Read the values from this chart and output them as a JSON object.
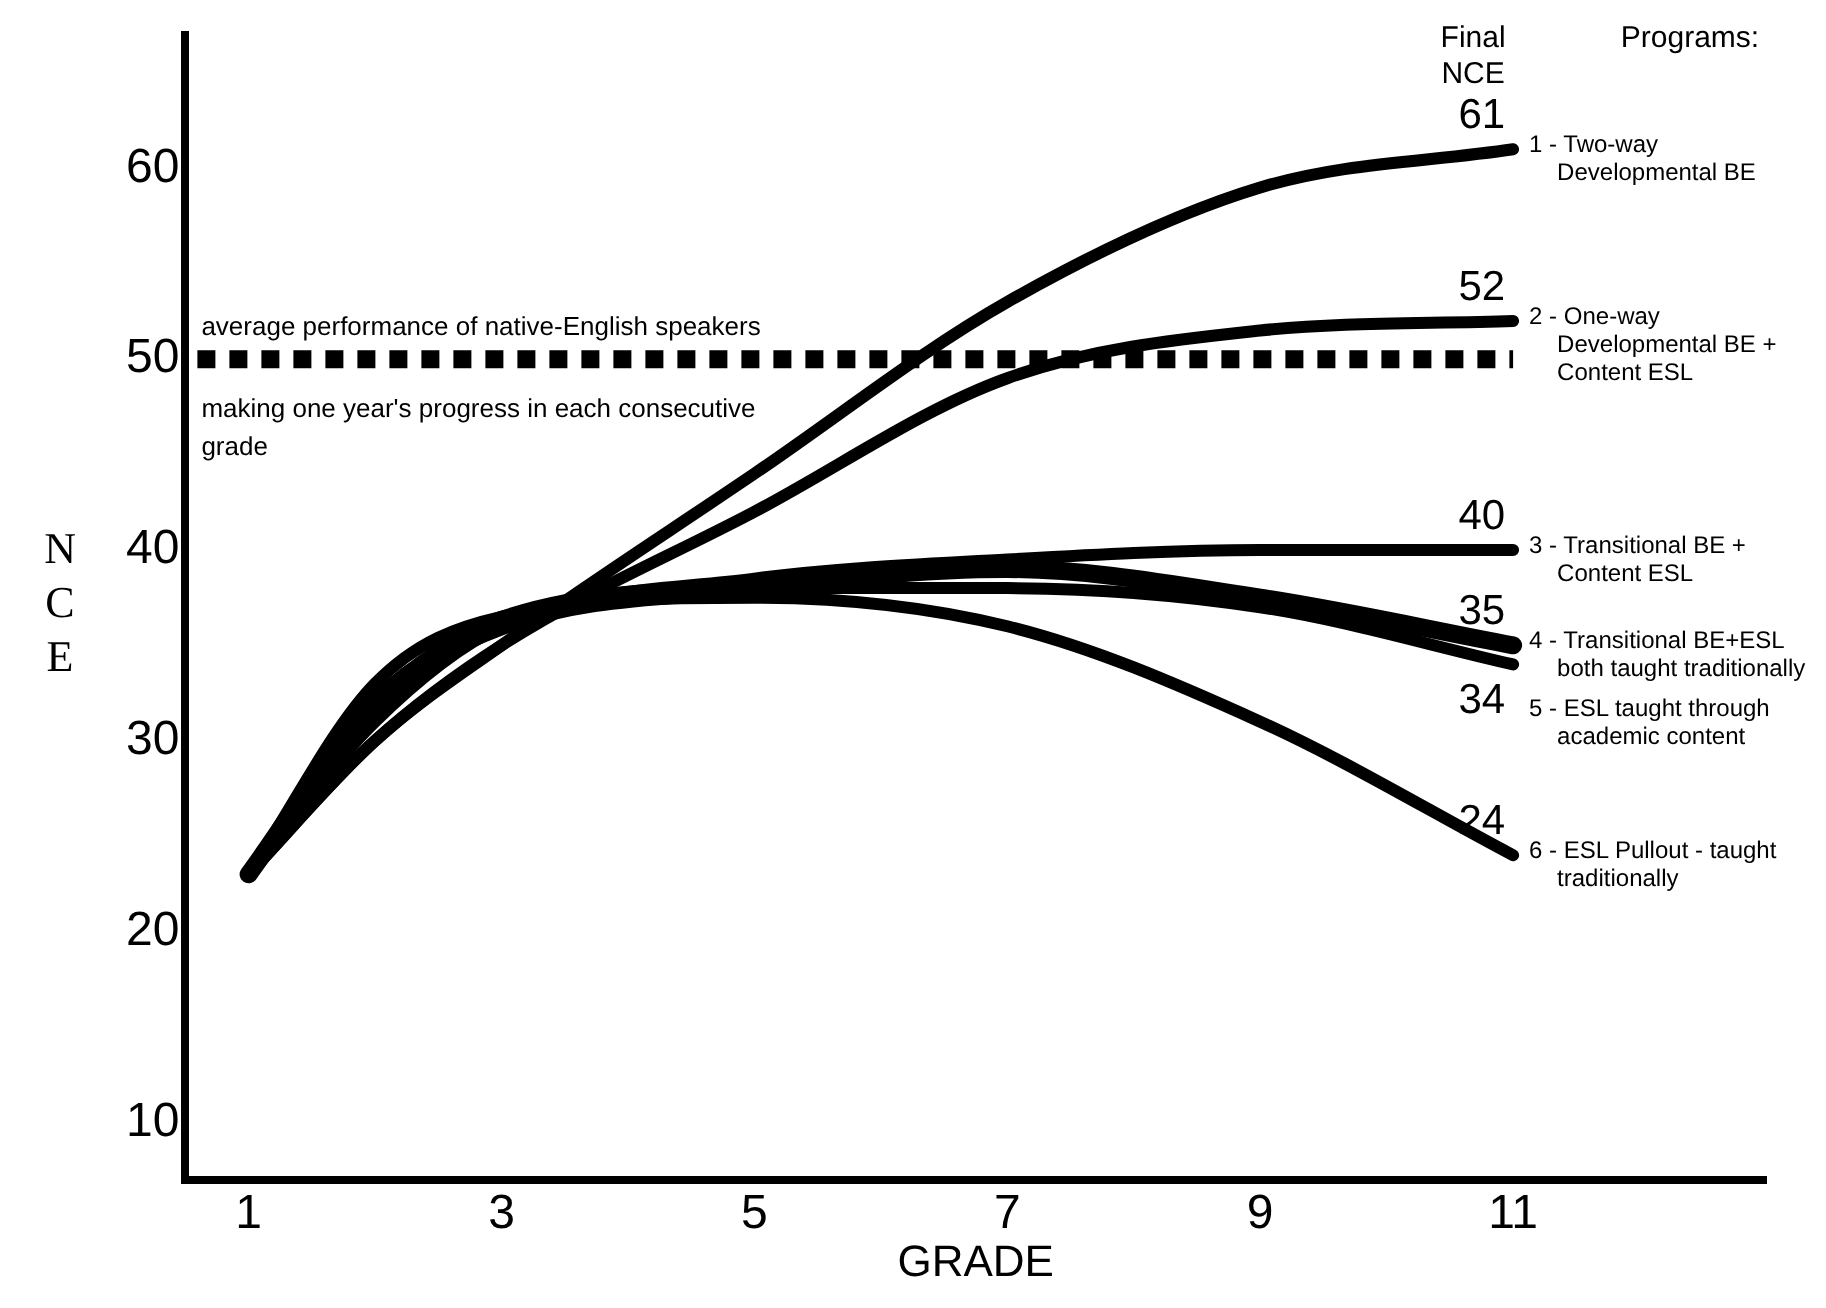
{
  "chart_data": {
    "type": "line",
    "xlabel": "GRADE",
    "ylabel": "NCE",
    "x": [
      1,
      2,
      3,
      5,
      7,
      9,
      11
    ],
    "xlim": [
      0.5,
      13
    ],
    "xticks": [
      1,
      3,
      5,
      7,
      9,
      11
    ],
    "ylim": [
      7,
      67
    ],
    "yticks": [
      10,
      20,
      30,
      40,
      50,
      60
    ],
    "grid": false,
    "marker": "none",
    "line_style": "solid",
    "series": [
      {
        "name": "1 - Two-way Developmental BE",
        "color": "#000000",
        "values": [
          23,
          30,
          35,
          44,
          53,
          59,
          61
        ],
        "value_labels": [
          null,
          null,
          null,
          null,
          null,
          null,
          "61"
        ]
      },
      {
        "name": "2 - One-way Developmental BE + Content ESL",
        "color": "#000000",
        "values": [
          23,
          30,
          35,
          42,
          49,
          51.5,
          52
        ],
        "value_labels": [
          null,
          null,
          null,
          null,
          null,
          null,
          "52"
        ]
      },
      {
        "name": "3 - Transitional BE + Content ESL",
        "color": "#000000",
        "values": [
          23,
          31,
          36,
          38.5,
          39.5,
          40,
          40
        ],
        "value_labels": [
          null,
          null,
          null,
          null,
          null,
          null,
          "40"
        ]
      },
      {
        "name": "4 - Transitional BE+ESL both taught traditionally",
        "color": "#000000",
        "values": [
          23,
          32,
          36,
          38,
          39,
          37.5,
          35
        ],
        "value_labels": [
          null,
          null,
          null,
          null,
          null,
          null,
          "35"
        ]
      },
      {
        "name": "5 - ESL taught through academic content",
        "color": "#000000",
        "values": [
          23,
          32,
          36.5,
          38,
          38,
          37,
          34
        ],
        "value_labels": [
          null,
          null,
          null,
          null,
          null,
          null,
          "34"
        ]
      },
      {
        "name": "6 - ESL Pullout - taught traditionally",
        "color": "#000000",
        "values": [
          23,
          33,
          36.5,
          37.5,
          36,
          31,
          24
        ],
        "value_labels": [
          null,
          null,
          null,
          null,
          null,
          null,
          "24"
        ]
      }
    ],
    "ref_lines": [
      {
        "axis": "y",
        "value": 50,
        "label": "average performance of native-English speakers making one year's progress in each consecutive grade",
        "color": "#000000",
        "line_style": "dotted"
      }
    ],
    "annotations": [
      "Final NCE",
      "Programs:"
    ]
  }
}
